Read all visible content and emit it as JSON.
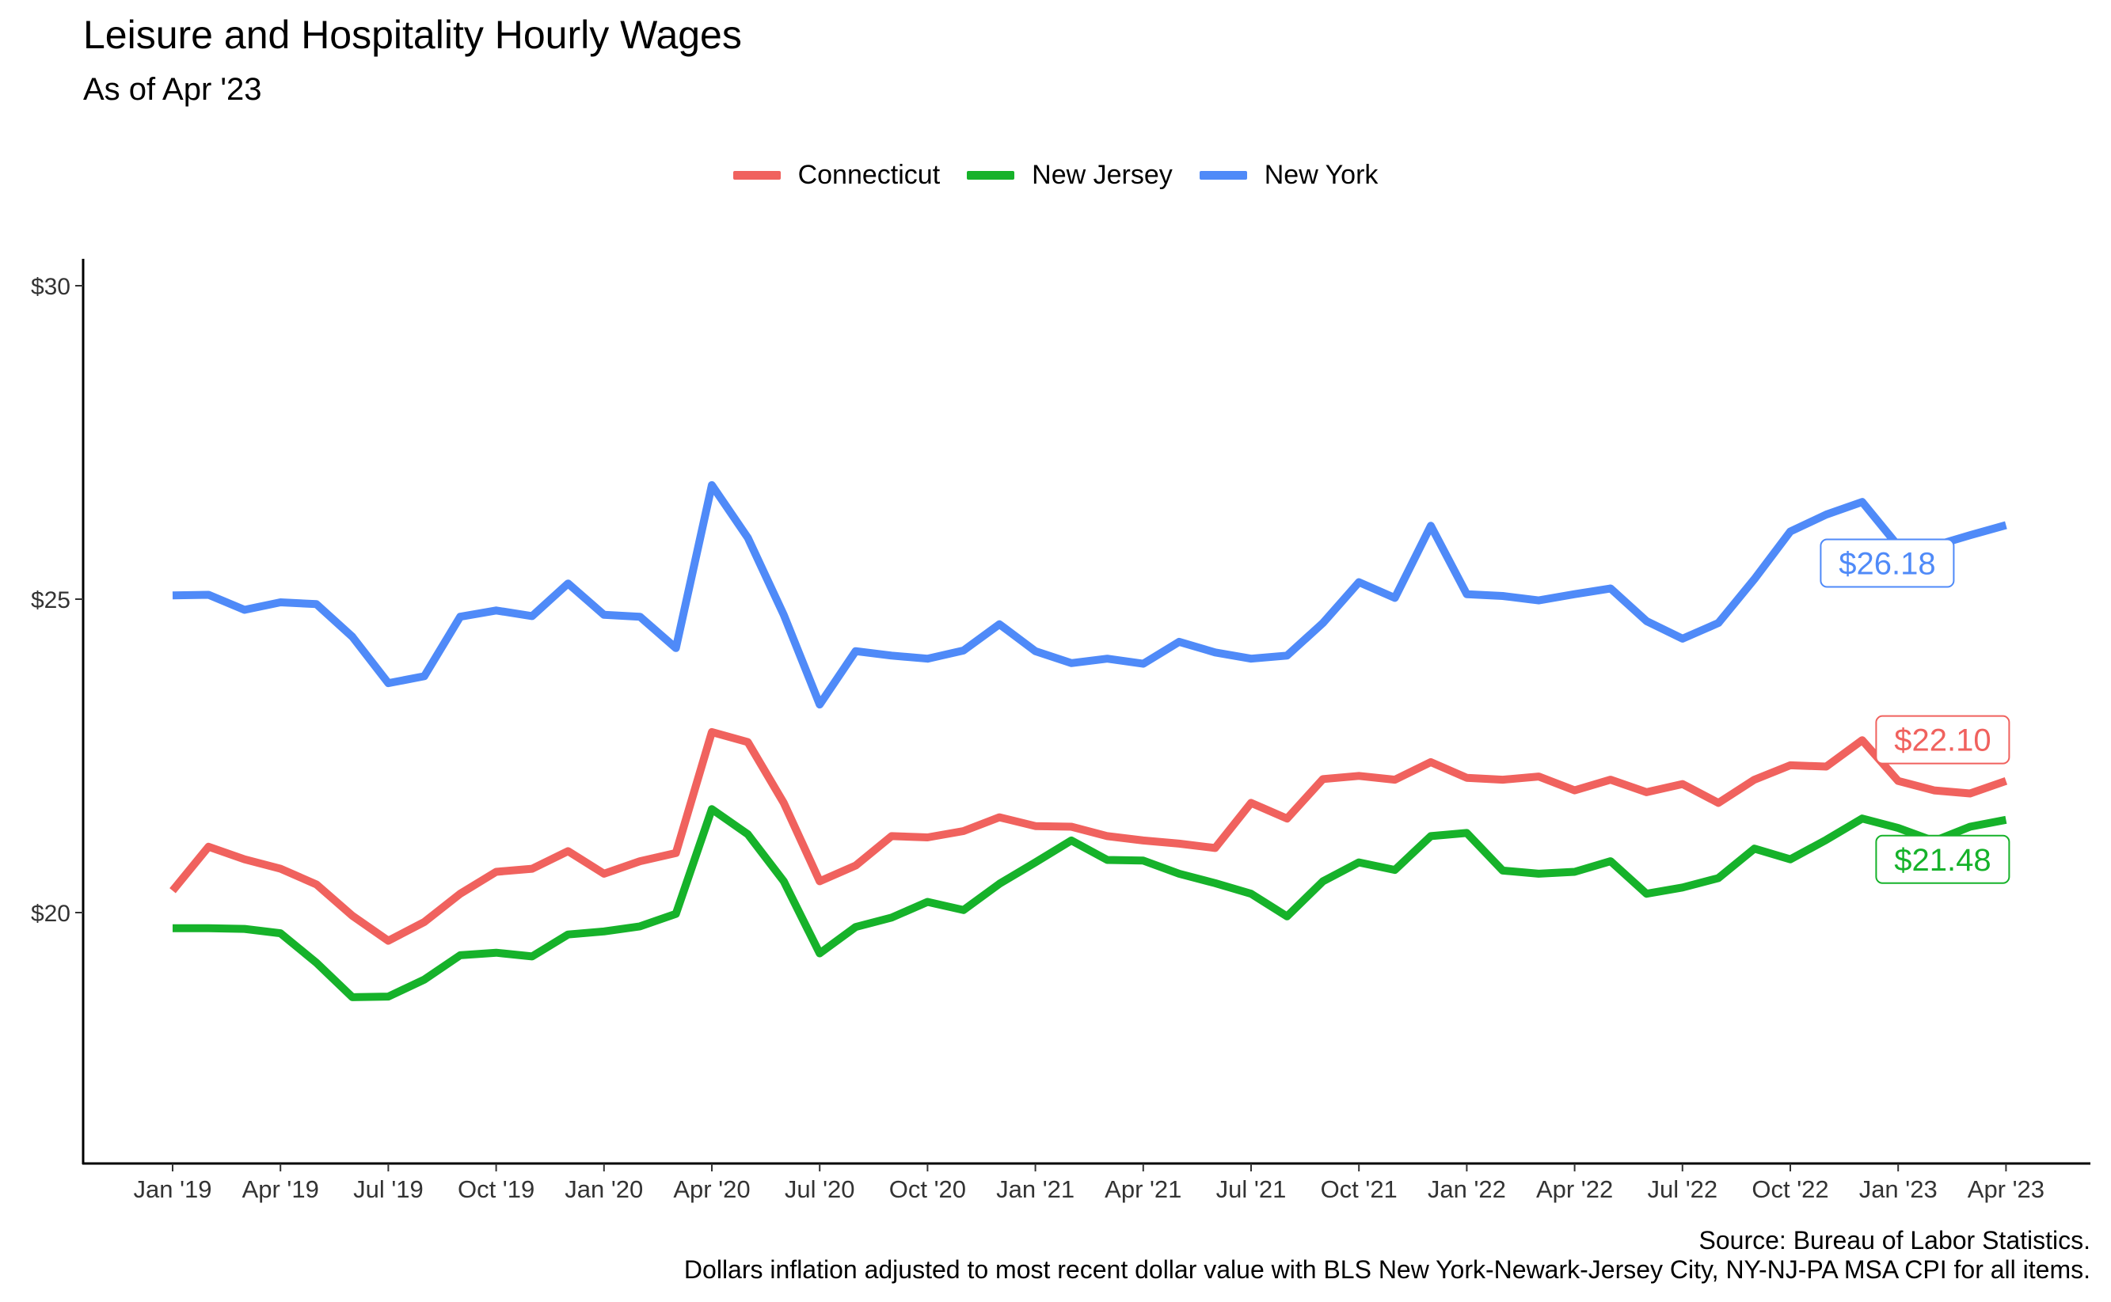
{
  "chart_data": {
    "type": "line",
    "title": "Leisure and Hospitality Hourly Wages",
    "subtitle": "As of Apr '23",
    "xlabel": "",
    "ylabel": "",
    "x": [
      "2019-01",
      "2019-02",
      "2019-03",
      "2019-04",
      "2019-05",
      "2019-06",
      "2019-07",
      "2019-08",
      "2019-09",
      "2019-10",
      "2019-11",
      "2019-12",
      "2020-01",
      "2020-02",
      "2020-03",
      "2020-04",
      "2020-05",
      "2020-06",
      "2020-07",
      "2020-08",
      "2020-09",
      "2020-10",
      "2020-11",
      "2020-12",
      "2021-01",
      "2021-02",
      "2021-03",
      "2021-04",
      "2021-05",
      "2021-06",
      "2021-07",
      "2021-08",
      "2021-09",
      "2021-10",
      "2021-11",
      "2021-12",
      "2022-01",
      "2022-02",
      "2022-03",
      "2022-04",
      "2022-05",
      "2022-06",
      "2022-07",
      "2022-08",
      "2022-09",
      "2022-10",
      "2022-11",
      "2022-12",
      "2023-01",
      "2023-02",
      "2023-03",
      "2023-04"
    ],
    "x_ticks": [
      "Jan '19",
      "Apr '19",
      "Jul '19",
      "Oct '19",
      "Jan '20",
      "Apr '20",
      "Jul '20",
      "Oct '20",
      "Jan '21",
      "Apr '21",
      "Jul '21",
      "Oct '21",
      "Jan '22",
      "Apr '22",
      "Jul '22",
      "Oct '22",
      "Jan '23",
      "Apr '23"
    ],
    "y_ticks": [
      "$20",
      "$25",
      "$30"
    ],
    "y_tick_values": [
      20,
      25,
      30
    ],
    "ylim": [
      16.4,
      30.5
    ],
    "grid": false,
    "legend_position": "top-center",
    "series": [
      {
        "name": "Connecticut",
        "color": "#F0625E",
        "values": [
          20.35,
          21.05,
          20.85,
          20.7,
          20.45,
          19.95,
          19.55,
          19.85,
          20.3,
          20.65,
          20.7,
          20.98,
          20.62,
          20.82,
          20.95,
          22.88,
          22.72,
          21.75,
          20.5,
          20.75,
          21.22,
          21.2,
          21.3,
          21.52,
          21.38,
          21.37,
          21.22,
          21.15,
          21.1,
          21.03,
          21.75,
          21.5,
          22.13,
          22.18,
          22.12,
          22.4,
          22.15,
          22.12,
          22.17,
          21.95,
          22.12,
          21.92,
          22.05,
          21.75,
          22.12,
          22.35,
          22.33,
          22.75,
          22.1,
          21.95,
          21.9,
          22.1
        ],
        "end_label": "$22.10"
      },
      {
        "name": "New Jersey",
        "color": "#16B22A",
        "values": [
          19.75,
          19.75,
          19.74,
          19.67,
          19.2,
          18.65,
          18.66,
          18.93,
          19.32,
          19.36,
          19.3,
          19.65,
          19.7,
          19.78,
          19.98,
          21.65,
          21.25,
          20.5,
          19.35,
          19.77,
          19.92,
          20.17,
          20.04,
          20.46,
          20.8,
          21.15,
          20.84,
          20.83,
          20.62,
          20.47,
          20.3,
          19.94,
          20.5,
          20.8,
          20.68,
          21.22,
          21.27,
          20.67,
          20.62,
          20.65,
          20.82,
          20.3,
          20.4,
          20.55,
          21.02,
          20.85,
          21.16,
          21.5,
          21.35,
          21.14,
          21.37,
          21.48
        ],
        "end_label": "$21.48"
      },
      {
        "name": "New York",
        "color": "#4F8AF8",
        "values": [
          25.06,
          25.07,
          24.83,
          24.95,
          24.92,
          24.4,
          23.66,
          23.77,
          24.72,
          24.82,
          24.73,
          25.25,
          24.75,
          24.72,
          24.22,
          26.82,
          25.98,
          24.75,
          23.32,
          24.17,
          24.1,
          24.05,
          24.18,
          24.6,
          24.17,
          23.98,
          24.05,
          23.97,
          24.32,
          24.15,
          24.05,
          24.1,
          24.62,
          25.27,
          25.02,
          26.17,
          25.08,
          25.05,
          24.98,
          25.08,
          25.17,
          24.65,
          24.37,
          24.62,
          25.32,
          26.08,
          26.35,
          26.55,
          25.85,
          25.85,
          26.02,
          26.18
        ],
        "end_label": "$26.18"
      }
    ],
    "source": "Source: Bureau of Labor Statistics.",
    "note": "Dollars inflation adjusted to most recent dollar value with BLS New York-Newark-Jersey City, NY-NJ-PA MSA CPI for all items."
  }
}
